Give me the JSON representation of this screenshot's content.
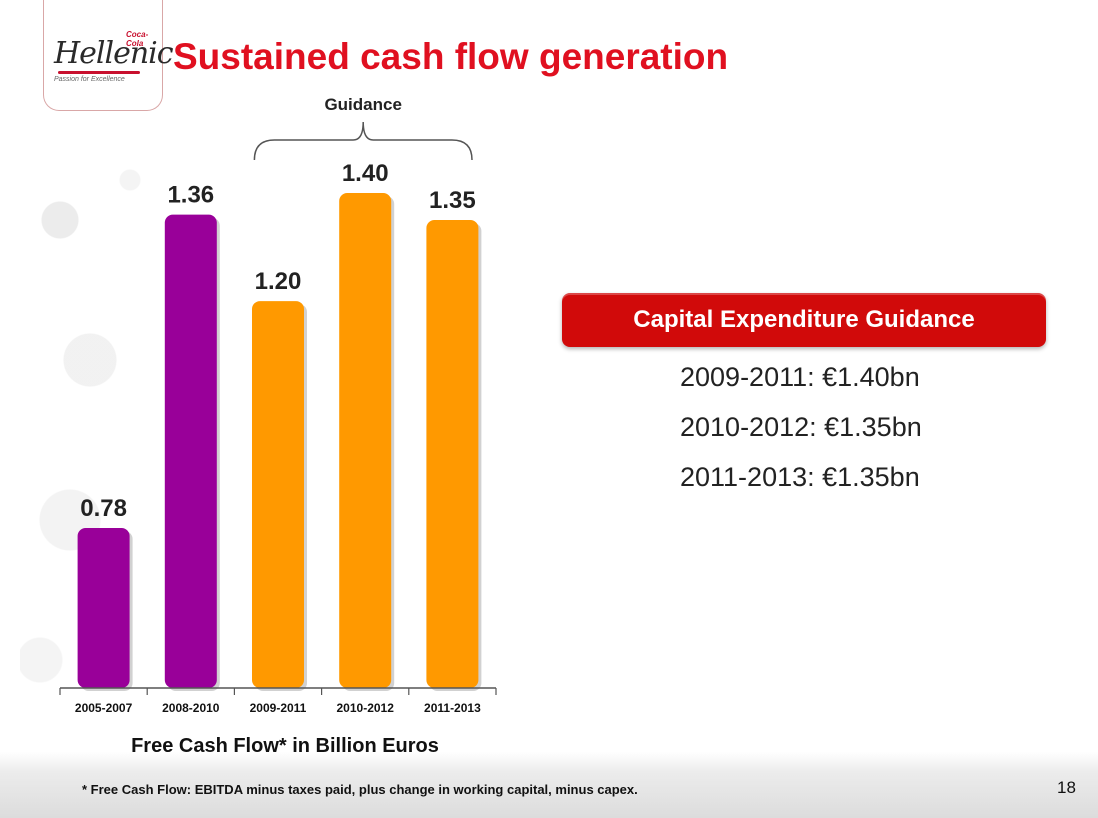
{
  "header": {
    "title": "Sustained cash flow generation",
    "logo": {
      "brand_small": "Coca-Cola",
      "brand_main": "Hellenic",
      "tagline": "Passion for Excellence"
    }
  },
  "chart_data": {
    "type": "bar",
    "title": "Free Cash Flow* in Billion Euros",
    "xlabel": "Free Cash Flow* in Billion Euros",
    "ylabel": "",
    "categories": [
      "2005-2007",
      "2008-2010",
      "2009-2011",
      "2010-2012",
      "2011-2013"
    ],
    "values": [
      0.78,
      1.36,
      1.2,
      1.4,
      1.35
    ],
    "value_labels": [
      "0.78",
      "1.36",
      "1.20",
      "1.40",
      "1.35"
    ],
    "bar_colors": [
      "#990099",
      "#990099",
      "#ff9900",
      "#ff9900",
      "#ff9900"
    ],
    "ylim": [
      0,
      1.5
    ],
    "grid": false,
    "annotation": {
      "text": "Guidance",
      "spans_categories": [
        "2009-2011",
        "2011-2013"
      ]
    }
  },
  "capex": {
    "heading": "Capital Expenditure Guidance",
    "items": [
      "2009-2011: €1.40bn",
      "2010-2012: €1.35bn",
      "2011-2013: €1.35bn"
    ]
  },
  "footer": {
    "footnote": "* Free Cash Flow:  EBITDA minus taxes paid, plus change in working capital, minus capex.",
    "page_number": "18"
  },
  "colors": {
    "title_red": "#e01020",
    "banner_red": "#d10a0a",
    "purple": "#990099",
    "orange": "#ff9900"
  }
}
